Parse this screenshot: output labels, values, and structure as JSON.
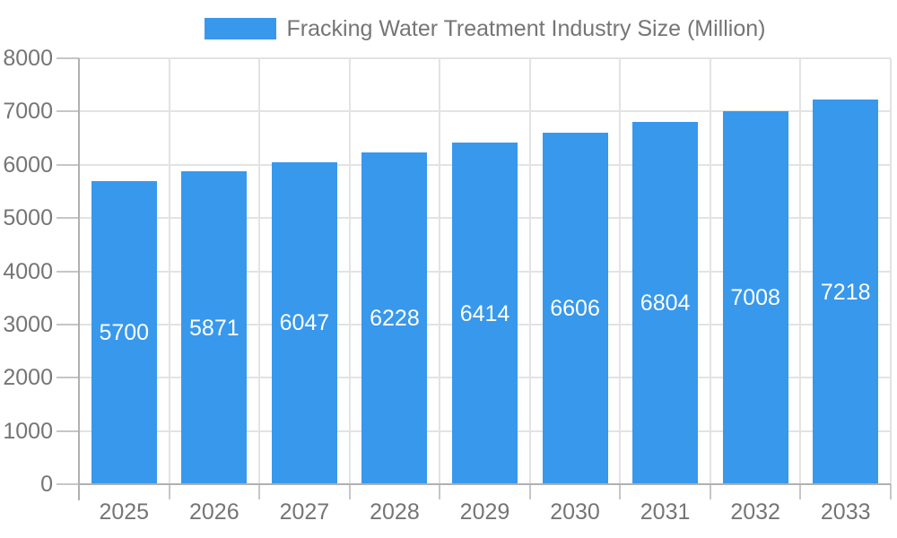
{
  "chart_data": {
    "type": "bar",
    "title": "Fracking Water Treatment Industry Size (Million)",
    "categories": [
      "2025",
      "2026",
      "2027",
      "2028",
      "2029",
      "2030",
      "2031",
      "2032",
      "2033"
    ],
    "values": [
      5700,
      5871,
      6047,
      6228,
      6414,
      6606,
      6804,
      7008,
      7218
    ],
    "xlabel": "",
    "ylabel": "",
    "ylim": [
      0,
      8000
    ],
    "yticks": [
      0,
      1000,
      2000,
      3000,
      4000,
      5000,
      6000,
      7000,
      8000
    ],
    "grid": true,
    "legend_position": "top-center",
    "bar_label_position": "inside-middle",
    "colors": {
      "bar": "#3898EC",
      "bar_label": "#FFFFFF",
      "axis_text": "#757575",
      "legend_text": "#757575",
      "gridline": "#E3E3E3",
      "tick": "#C6C6C6",
      "axis_line": "#B0B0B0",
      "background": "#FFFFFF"
    }
  }
}
